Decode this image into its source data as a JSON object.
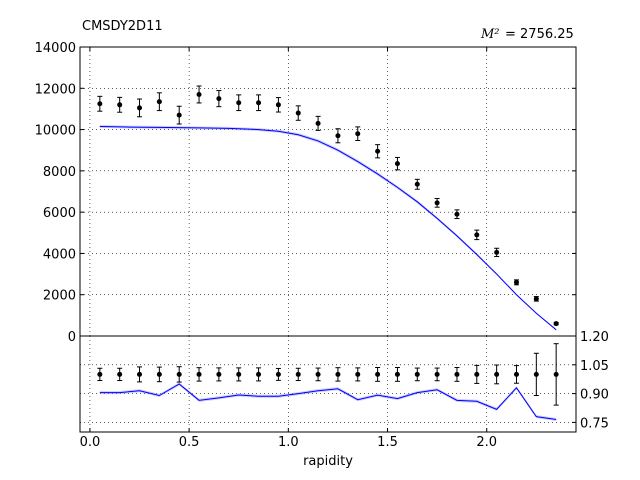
{
  "chart_data": [
    {
      "type": "scatter",
      "title": "CMSDY2D11",
      "annotation": {
        "symbol": "M²",
        "text": "= 2756.25"
      },
      "xlabel": "",
      "ylabel": "",
      "xlim": [
        -0.05,
        2.45
      ],
      "ylim": [
        0,
        14000
      ],
      "yticks": [
        0,
        2000,
        4000,
        6000,
        8000,
        10000,
        12000,
        14000
      ],
      "grid": true,
      "data_series": {
        "x": [
          0.05,
          0.15,
          0.25,
          0.35,
          0.45,
          0.55,
          0.65,
          0.75,
          0.85,
          0.95,
          1.05,
          1.15,
          1.25,
          1.35,
          1.45,
          1.55,
          1.65,
          1.75,
          1.85,
          1.95,
          2.05,
          2.15,
          2.25,
          2.35
        ],
        "y": [
          11250,
          11200,
          11050,
          11350,
          10700,
          11700,
          11500,
          11300,
          11300,
          11200,
          10800,
          10300,
          9700,
          9800,
          8950,
          8350,
          7350,
          6450,
          5900,
          4900,
          4050,
          2600,
          1800,
          600
        ],
        "err": [
          360,
          360,
          430,
          430,
          430,
          410,
          390,
          380,
          380,
          350,
          350,
          340,
          340,
          330,
          320,
          300,
          240,
          210,
          210,
          230,
          200,
          120,
          110,
          60
        ]
      },
      "theory_band": {
        "x": [
          0.05,
          0.2,
          0.4,
          0.55,
          0.7,
          0.85,
          0.95,
          1.05,
          1.15,
          1.25,
          1.35,
          1.45,
          1.55,
          1.65,
          1.75,
          1.85,
          1.95,
          2.05,
          2.15,
          2.25,
          2.35
        ],
        "central": [
          10150,
          10120,
          10100,
          10080,
          10060,
          10000,
          9920,
          9750,
          9450,
          9000,
          8450,
          7850,
          7200,
          6500,
          5700,
          4850,
          3950,
          3000,
          2000,
          1100,
          300
        ],
        "halfwidth": [
          70,
          70,
          70,
          70,
          70,
          70,
          70,
          75,
          80,
          80,
          80,
          80,
          80,
          75,
          70,
          65,
          60,
          50,
          40,
          30,
          20
        ]
      }
    },
    {
      "type": "line",
      "title": "",
      "xlabel": "rapidity",
      "ylabel": "",
      "xlim": [
        -0.05,
        2.45
      ],
      "ylim": [
        0.7,
        1.2
      ],
      "yticks": [
        0.75,
        0.9,
        1.05,
        1.2
      ],
      "xticks": [
        0.0,
        0.5,
        1.0,
        1.5,
        2.0
      ],
      "grid": true,
      "ratio_data": {
        "x": [
          0.05,
          0.15,
          0.25,
          0.35,
          0.45,
          0.55,
          0.65,
          0.75,
          0.85,
          0.95,
          1.05,
          1.15,
          1.25,
          1.35,
          1.45,
          1.55,
          1.65,
          1.75,
          1.85,
          1.95,
          2.05,
          2.15,
          2.25,
          2.35
        ],
        "y": [
          1.0,
          1.0,
          1.0,
          1.0,
          1.0,
          1.0,
          1.0,
          1.0,
          1.0,
          1.0,
          1.0,
          1.0,
          1.0,
          1.0,
          1.0,
          1.0,
          1.0,
          1.0,
          1.0,
          1.0,
          1.0,
          1.0,
          1.0,
          1.0
        ],
        "err": [
          0.032,
          0.032,
          0.039,
          0.038,
          0.04,
          0.035,
          0.034,
          0.034,
          0.034,
          0.031,
          0.032,
          0.033,
          0.035,
          0.034,
          0.036,
          0.036,
          0.033,
          0.033,
          0.036,
          0.047,
          0.049,
          0.046,
          0.11,
          0.16
        ]
      },
      "ratio_theory": {
        "x": [
          0.05,
          0.15,
          0.25,
          0.35,
          0.45,
          0.55,
          0.65,
          0.75,
          0.85,
          0.95,
          1.05,
          1.15,
          1.25,
          1.35,
          1.45,
          1.55,
          1.65,
          1.75,
          1.85,
          1.95,
          2.05,
          2.15,
          2.25,
          2.35
        ],
        "y": [
          0.905,
          0.905,
          0.915,
          0.89,
          0.95,
          0.865,
          0.878,
          0.893,
          0.886,
          0.886,
          0.9,
          0.915,
          0.925,
          0.868,
          0.892,
          0.874,
          0.905,
          0.92,
          0.865,
          0.86,
          0.818,
          0.93,
          0.78,
          0.765
        ],
        "halfwidth": 0.008
      }
    }
  ]
}
